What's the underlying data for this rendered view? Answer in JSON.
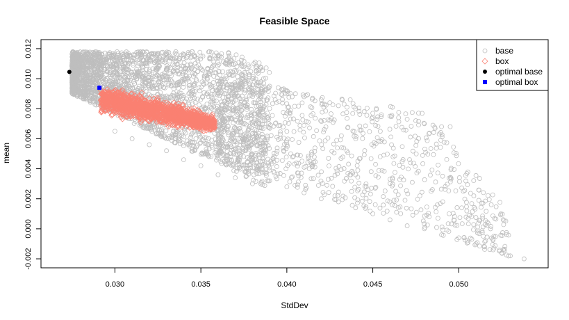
{
  "chart_data": {
    "type": "scatter",
    "title": "Feasible Space",
    "xlabel": "StdDev",
    "ylabel": "mean",
    "xlim": [
      0.0257,
      0.0552
    ],
    "ylim": [
      -0.0026,
      0.0126
    ],
    "x_ticks": [
      {
        "value": 0.03,
        "label": "0.030"
      },
      {
        "value": 0.035,
        "label": "0.035"
      },
      {
        "value": 0.04,
        "label": "0.040"
      },
      {
        "value": 0.045,
        "label": "0.045"
      },
      {
        "value": 0.05,
        "label": "0.050"
      }
    ],
    "y_ticks": [
      {
        "value": -0.002,
        "label": "-0.002"
      },
      {
        "value": 0.0,
        "label": "0.000"
      },
      {
        "value": 0.002,
        "label": "0.002"
      },
      {
        "value": 0.004,
        "label": "0.004"
      },
      {
        "value": 0.006,
        "label": "0.006"
      },
      {
        "value": 0.008,
        "label": "0.008"
      },
      {
        "value": 0.01,
        "label": "0.010"
      },
      {
        "value": 0.012,
        "label": "0.012"
      }
    ],
    "grid": false,
    "legend_position": "top-right",
    "legend": [
      {
        "label": "base",
        "marker": "circle-open",
        "color": "#bebebe"
      },
      {
        "label": "box",
        "marker": "diamond-open",
        "color": "#fa8072"
      },
      {
        "label": "optimal base",
        "marker": "circle-filled",
        "color": "#000000"
      },
      {
        "label": "optimal box",
        "marker": "square-filled",
        "color": "#0000ff"
      }
    ],
    "series": [
      {
        "name": "base",
        "color": "#bebebe",
        "marker": "circle-open",
        "points": [
          [
            0.028,
            0.0108
          ],
          [
            0.0285,
            0.0112
          ],
          [
            0.029,
            0.0105
          ],
          [
            0.0295,
            0.0113
          ],
          [
            0.03,
            0.011
          ],
          [
            0.0305,
            0.0115
          ],
          [
            0.031,
            0.0112
          ],
          [
            0.0315,
            0.0116
          ],
          [
            0.032,
            0.0113
          ],
          [
            0.0325,
            0.0117
          ],
          [
            0.033,
            0.0114
          ],
          [
            0.0335,
            0.0117
          ],
          [
            0.034,
            0.0116
          ],
          [
            0.0345,
            0.0118
          ],
          [
            0.035,
            0.0115
          ],
          [
            0.0355,
            0.0118
          ],
          [
            0.036,
            0.0114
          ],
          [
            0.0365,
            0.0112
          ],
          [
            0.037,
            0.011
          ],
          [
            0.0375,
            0.0108
          ],
          [
            0.038,
            0.01
          ],
          [
            0.0385,
            0.0098
          ],
          [
            0.039,
            0.0095
          ],
          [
            0.0395,
            0.0094
          ],
          [
            0.04,
            0.0092
          ],
          [
            0.0405,
            0.009
          ],
          [
            0.041,
            0.0088
          ],
          [
            0.0415,
            0.0087
          ],
          [
            0.042,
            0.0086
          ],
          [
            0.0425,
            0.0084
          ],
          [
            0.043,
            0.0082
          ],
          [
            0.0435,
            0.0081
          ],
          [
            0.044,
            0.008
          ],
          [
            0.0445,
            0.0078
          ],
          [
            0.045,
            0.0077
          ],
          [
            0.0455,
            0.0076
          ],
          [
            0.046,
            0.0075
          ],
          [
            0.0465,
            0.0074
          ],
          [
            0.047,
            0.0073
          ],
          [
            0.0475,
            0.0072
          ],
          [
            0.048,
            0.007
          ],
          [
            0.0485,
            0.0069
          ],
          [
            0.049,
            0.0068
          ],
          [
            0.0495,
            0.0068
          ],
          [
            0.03,
            0.0065
          ],
          [
            0.031,
            0.006
          ],
          [
            0.032,
            0.0056
          ],
          [
            0.033,
            0.0052
          ],
          [
            0.034,
            0.0046
          ],
          [
            0.035,
            0.0042
          ],
          [
            0.036,
            0.0036
          ],
          [
            0.037,
            0.0034
          ],
          [
            0.038,
            0.003
          ],
          [
            0.039,
            0.0032
          ],
          [
            0.04,
            0.0028
          ],
          [
            0.041,
            0.0024
          ],
          [
            0.042,
            0.002
          ],
          [
            0.043,
            0.0018
          ],
          [
            0.044,
            0.0014
          ],
          [
            0.045,
            0.001
          ],
          [
            0.046,
            0.0006
          ],
          [
            0.047,
            0.0002
          ],
          [
            0.048,
            0.0
          ],
          [
            0.049,
            -0.0004
          ],
          [
            0.05,
            -0.0006
          ],
          [
            0.0505,
            -0.0008
          ],
          [
            0.051,
            -0.001
          ],
          [
            0.0515,
            -0.0012
          ],
          [
            0.052,
            -0.0014
          ],
          [
            0.0525,
            -0.0016
          ],
          [
            0.053,
            -0.0018
          ],
          [
            0.0538,
            -0.002
          ]
        ]
      },
      {
        "name": "box",
        "color": "#fa8072",
        "marker": "diamond-open",
        "points": [
          [
            0.0292,
            0.0092
          ],
          [
            0.0295,
            0.0085
          ],
          [
            0.03,
            0.009
          ],
          [
            0.03,
            0.008
          ],
          [
            0.0305,
            0.0088
          ],
          [
            0.0305,
            0.0076
          ],
          [
            0.031,
            0.009
          ],
          [
            0.031,
            0.0082
          ],
          [
            0.0315,
            0.0088
          ],
          [
            0.0315,
            0.0074
          ],
          [
            0.032,
            0.0087
          ],
          [
            0.032,
            0.0078
          ],
          [
            0.0325,
            0.0086
          ],
          [
            0.0325,
            0.0072
          ],
          [
            0.033,
            0.0084
          ],
          [
            0.033,
            0.0076
          ],
          [
            0.0335,
            0.0082
          ],
          [
            0.0335,
            0.0072
          ],
          [
            0.034,
            0.008
          ],
          [
            0.034,
            0.007
          ],
          [
            0.0345,
            0.0078
          ],
          [
            0.035,
            0.0075
          ],
          [
            0.035,
            0.0068
          ],
          [
            0.0355,
            0.0072
          ],
          [
            0.0358,
            0.0069
          ]
        ]
      },
      {
        "name": "optimal base",
        "color": "#000000",
        "marker": "circle-filled",
        "points": [
          [
            0.02735,
            0.01045
          ]
        ]
      },
      {
        "name": "optimal box",
        "color": "#0000ff",
        "marker": "square-filled",
        "points": [
          [
            0.0291,
            0.0094
          ]
        ]
      }
    ]
  }
}
